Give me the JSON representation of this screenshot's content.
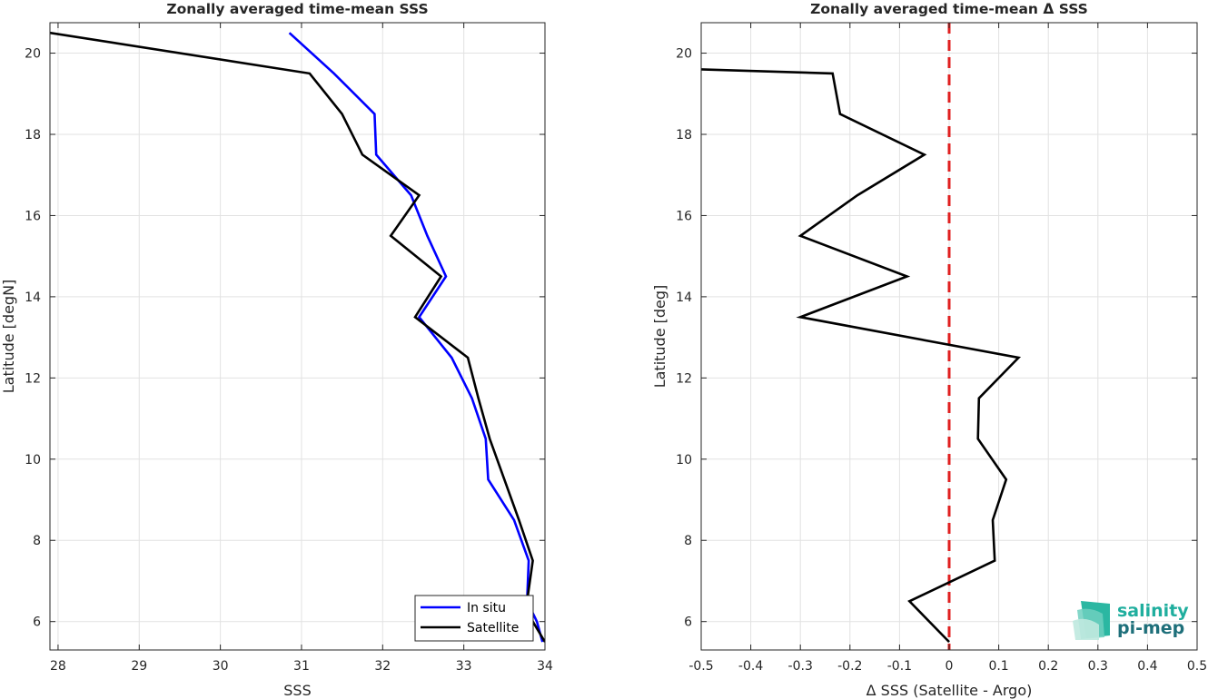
{
  "chart_data": [
    {
      "type": "line",
      "title": "Zonally averaged time-mean SSS",
      "xlabel": "SSS",
      "ylabel": "Latitude [degN]",
      "xlim": [
        27.9,
        34.0
      ],
      "ylim": [
        5.3,
        20.75
      ],
      "xticks": [
        28,
        29,
        30,
        31,
        32,
        33,
        34
      ],
      "yticks": [
        6,
        8,
        10,
        12,
        14,
        16,
        18,
        20
      ],
      "grid": true,
      "legend": "bottom-right",
      "series": [
        {
          "name": "In situ",
          "color": "#0000ff",
          "x": [
            30.85,
            31.4,
            31.9,
            31.92,
            32.35,
            32.55,
            32.78,
            32.45,
            32.85,
            33.1,
            33.27,
            33.3,
            33.62,
            33.8,
            33.78,
            33.9,
            33.97
          ],
          "y": [
            20.5,
            19.5,
            18.5,
            17.5,
            16.5,
            15.5,
            14.5,
            13.5,
            12.5,
            11.5,
            10.5,
            9.5,
            8.5,
            7.5,
            6.5,
            6.0,
            5.5
          ]
        },
        {
          "name": "Satellite",
          "color": "#000000",
          "x": [
            27.9,
            31.1,
            31.5,
            31.75,
            32.45,
            32.1,
            32.72,
            32.4,
            33.05,
            33.18,
            33.32,
            33.5,
            33.68,
            33.85,
            33.78,
            33.85,
            34.0
          ],
          "y": [
            20.5,
            19.5,
            18.5,
            17.5,
            16.5,
            15.5,
            14.5,
            13.5,
            12.5,
            11.5,
            10.5,
            9.5,
            8.5,
            7.5,
            6.5,
            6.0,
            5.5
          ]
        }
      ]
    },
    {
      "type": "line",
      "title": "Zonally averaged time-mean Δ SSS",
      "xlabel": "Δ SSS (Satellite - Argo)",
      "ylabel": "Latitude [deg]",
      "xlim": [
        -0.5,
        0.5
      ],
      "ylim": [
        5.3,
        20.75
      ],
      "xticks": [
        -0.5,
        -0.4,
        -0.3,
        -0.2,
        -0.1,
        0,
        0.1,
        0.2,
        0.3,
        0.4,
        0.5
      ],
      "yticks": [
        6,
        8,
        10,
        12,
        14,
        16,
        18,
        20
      ],
      "grid": true,
      "reference_line": {
        "x": 0,
        "color": "#e02020",
        "style": "dashed"
      },
      "series": [
        {
          "color": "#000000",
          "x": [
            -0.5,
            -0.235,
            -0.22,
            -0.05,
            -0.185,
            -0.3,
            -0.085,
            -0.3,
            0.14,
            0.06,
            0.058,
            0.115,
            0.088,
            0.092,
            -0.08,
            0.0
          ],
          "y": [
            19.6,
            19.5,
            18.5,
            17.5,
            16.5,
            15.5,
            14.5,
            13.5,
            12.5,
            11.5,
            10.5,
            9.5,
            8.5,
            7.5,
            6.5,
            5.5
          ]
        }
      ]
    }
  ],
  "logo": {
    "line1": "salinity",
    "line2": "pi-mep"
  }
}
